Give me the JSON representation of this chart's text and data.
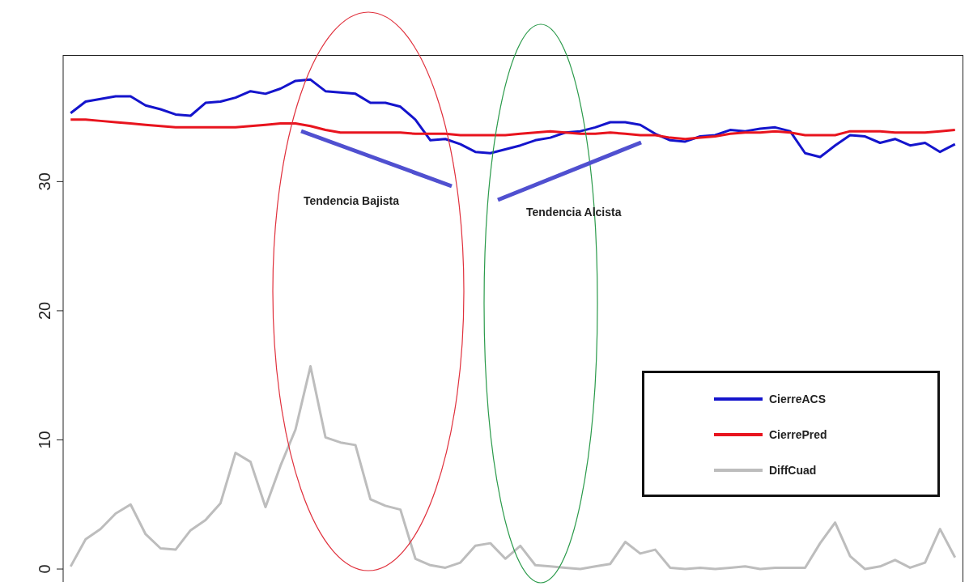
{
  "chart_data": {
    "type": "line",
    "categories": [
      null,
      null,
      null,
      null,
      null,
      null,
      null,
      null,
      null,
      null,
      null,
      null,
      null,
      null,
      null,
      null,
      null,
      null,
      null,
      null,
      null,
      null,
      null,
      null,
      null,
      null,
      null,
      null,
      null,
      null,
      null,
      null,
      null,
      null,
      null,
      null,
      null,
      null,
      null,
      null,
      null,
      null,
      null,
      null,
      null,
      null,
      null,
      null,
      null,
      null,
      null,
      null,
      null,
      null,
      null,
      null,
      null,
      null,
      null,
      null
    ],
    "series": [
      {
        "name": "CierreACS",
        "color": "#1414cc",
        "values": [
          35.3,
          36.2,
          36.4,
          36.6,
          36.6,
          35.9,
          35.6,
          35.2,
          35.1,
          36.1,
          36.2,
          36.5,
          37.0,
          36.8,
          37.2,
          37.8,
          37.9,
          37.0,
          36.9,
          36.8,
          36.1,
          36.1,
          35.8,
          34.8,
          33.2,
          33.3,
          32.9,
          32.3,
          32.2,
          32.5,
          32.8,
          33.2,
          33.4,
          33.8,
          33.9,
          34.2,
          34.6,
          34.6,
          34.4,
          33.7,
          33.2,
          33.1,
          33.5,
          33.6,
          34.0,
          33.9,
          34.1,
          34.2,
          33.9,
          32.2,
          31.9,
          32.8,
          33.6,
          33.5,
          33.0,
          33.3,
          32.8,
          33.0,
          32.3,
          32.9
        ]
      },
      {
        "name": "CierrePred",
        "color": "#e8141e",
        "values": [
          34.8,
          34.8,
          34.7,
          34.6,
          34.5,
          34.4,
          34.3,
          34.2,
          34.2,
          34.2,
          34.2,
          34.2,
          34.3,
          34.4,
          34.5,
          34.5,
          34.3,
          34.0,
          33.8,
          33.8,
          33.8,
          33.8,
          33.8,
          33.7,
          33.7,
          33.7,
          33.6,
          33.6,
          33.6,
          33.6,
          33.7,
          33.8,
          33.9,
          33.8,
          33.7,
          33.7,
          33.8,
          33.7,
          33.6,
          33.6,
          33.4,
          33.3,
          33.4,
          33.5,
          33.7,
          33.8,
          33.8,
          33.9,
          33.8,
          33.6,
          33.6,
          33.6,
          33.9,
          33.9,
          33.9,
          33.8,
          33.8,
          33.8,
          33.9,
          34.0
        ]
      },
      {
        "name": "DiffCuad",
        "color": "#bdbdbd",
        "values": [
          0.2,
          2.3,
          3.1,
          4.3,
          5.0,
          2.7,
          1.6,
          1.5,
          3.0,
          3.8,
          5.1,
          9.0,
          8.3,
          4.8,
          8.0,
          10.8,
          15.7,
          10.2,
          9.8,
          9.6,
          5.4,
          4.9,
          4.6,
          0.8,
          0.3,
          0.1,
          0.5,
          1.8,
          2.0,
          0.8,
          1.8,
          0.3,
          0.2,
          0.1,
          0.0,
          0.2,
          0.4,
          2.1,
          1.2,
          1.5,
          0.1,
          0.0,
          0.1,
          0.0,
          0.1,
          0.2,
          0.0,
          0.1,
          0.1,
          0.1,
          2.0,
          3.6,
          1.0,
          0.0,
          0.2,
          0.7,
          0.1,
          0.5,
          3.1,
          0.9
        ]
      }
    ],
    "ylim": [
      -1,
      39.8
    ],
    "yticks": [
      0,
      10,
      20,
      30
    ],
    "grid": false,
    "legend": "bottom right",
    "marker": "none",
    "line_style": "solid",
    "tick_labels": "y",
    "annotations": [
      "Tendencia Bajista",
      "Tendencia Alcista"
    ]
  }
}
